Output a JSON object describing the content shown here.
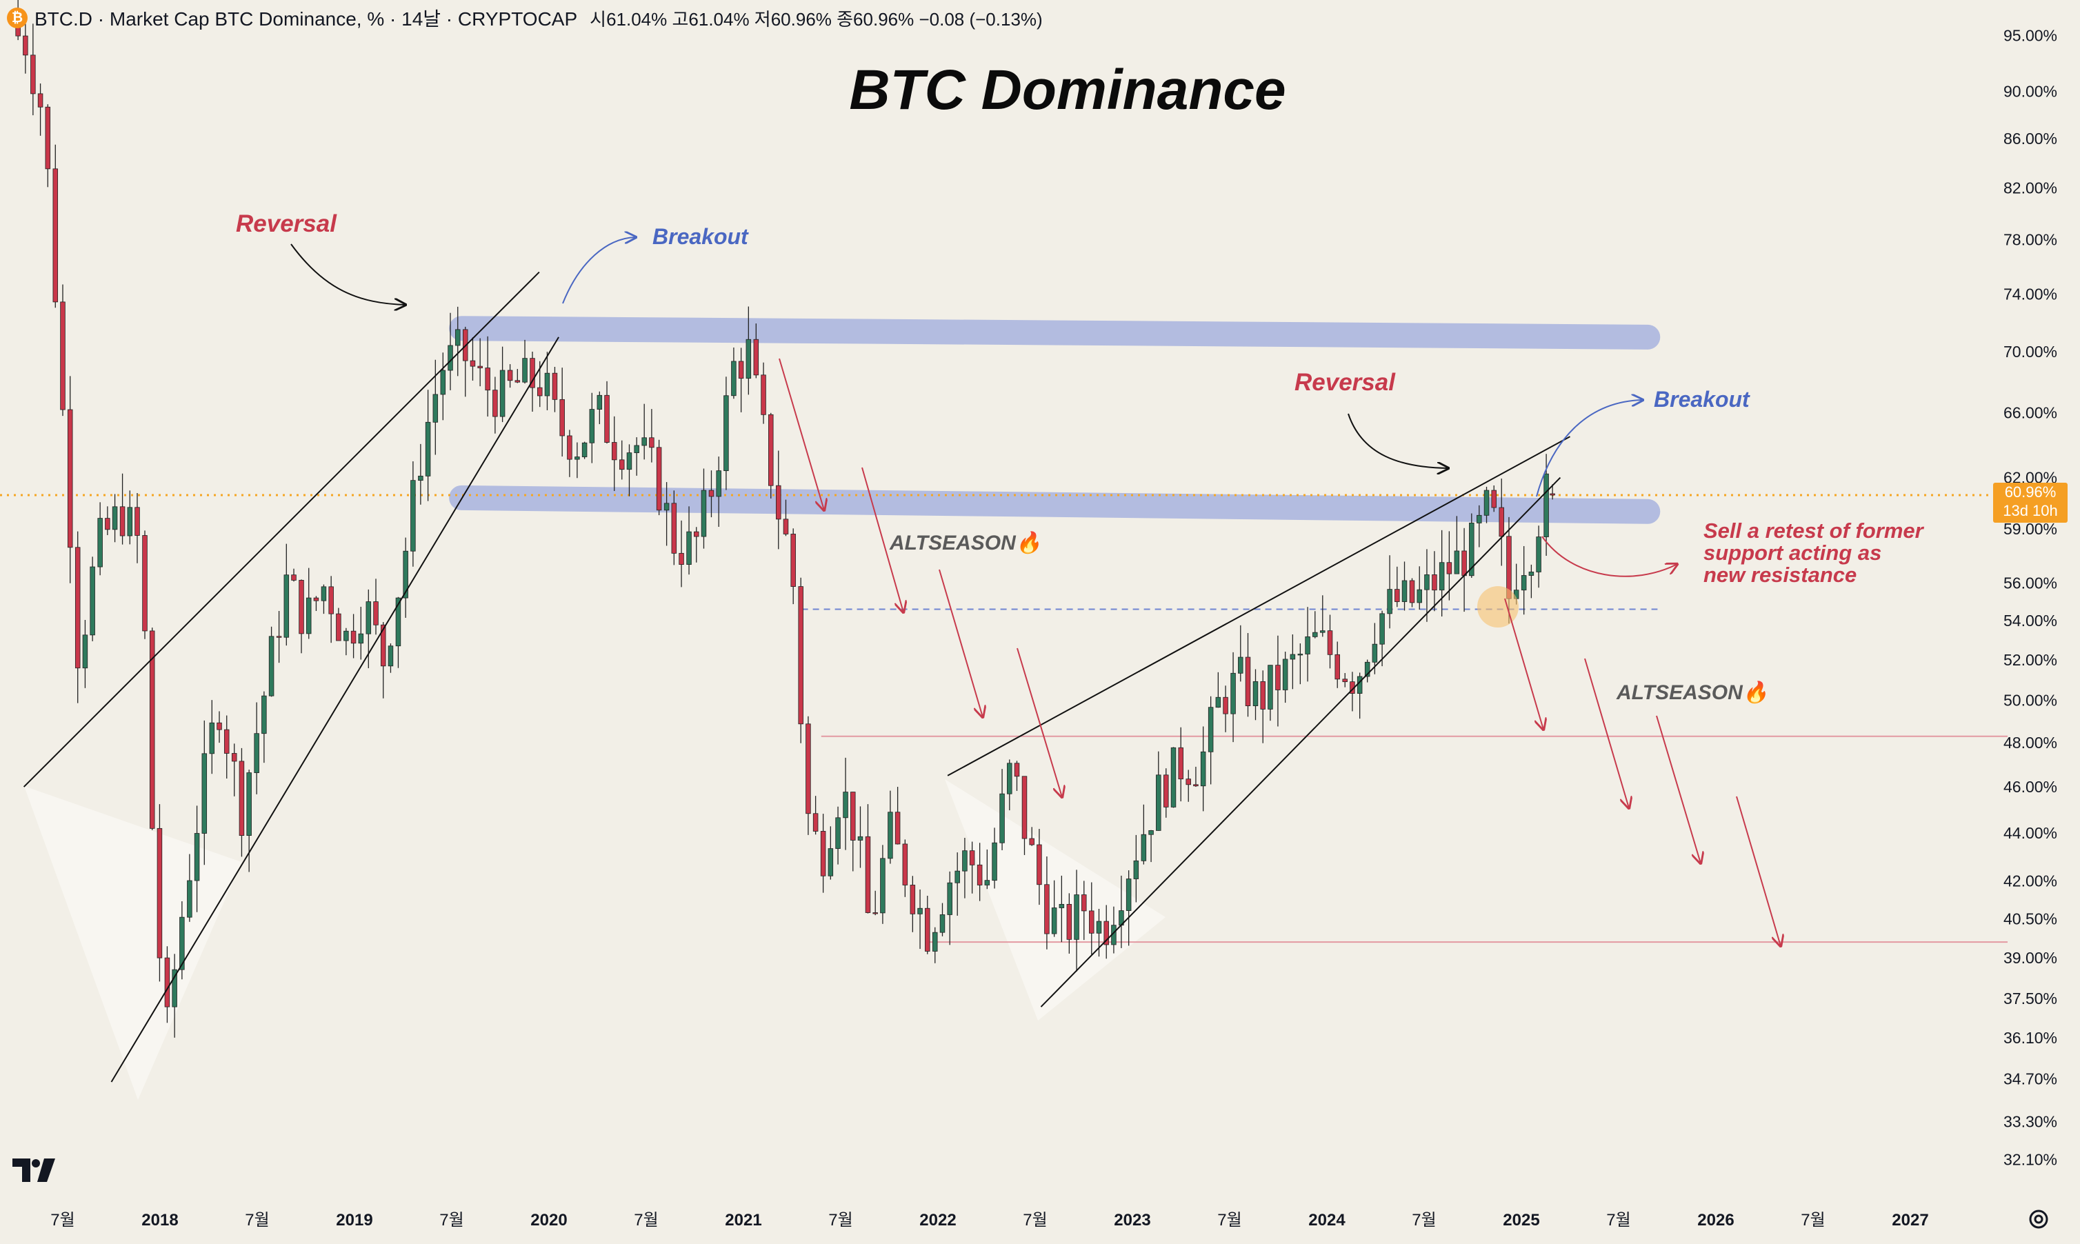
{
  "header": {
    "symbol": "BTC.D · Market Cap BTC Dominance, % · 14날 · CRYPTOCAP",
    "ohlc": "시61.04% 고61.04% 저60.96% 종60.96% −0.08 (−0.13%)"
  },
  "current_price": {
    "value": "60.96%",
    "countdown": "13d 10h"
  },
  "icons": [
    "bitcoin-icon",
    "tradingview-logo-icon",
    "settings-icon"
  ],
  "colors": {
    "background": "#f2efe7",
    "up": "#2f7a5d",
    "down": "#c9374a",
    "zone": "#a9b4df",
    "red_annot": "#c73a4c",
    "blue_annot": "#4a67c2",
    "price_line": "#f5a623"
  },
  "chart_data": {
    "type": "candlestick",
    "title": "BTC Dominance",
    "y_scale": "log",
    "ylim": [
      31.5,
      97
    ],
    "y_ticks": [
      "95.00%",
      "90.00%",
      "86.00%",
      "82.00%",
      "78.00%",
      "74.00%",
      "70.00%",
      "66.00%",
      "62.00%",
      "59.00%",
      "56.00%",
      "54.00%",
      "52.00%",
      "50.00%",
      "48.00%",
      "46.00%",
      "44.00%",
      "42.00%",
      "40.50%",
      "39.00%",
      "37.50%",
      "36.10%",
      "34.70%",
      "33.30%",
      "32.10%"
    ],
    "x_ticks": [
      "7월",
      "2018",
      "7월",
      "2019",
      "7월",
      "2020",
      "7월",
      "2021",
      "7월",
      "2022",
      "7월",
      "2023",
      "7월",
      "2024",
      "7월",
      "2025",
      "7월",
      "2026",
      "7월",
      "2027"
    ],
    "x_range": [
      2017.25,
      2027.5
    ],
    "candles": [],
    "zones": [
      {
        "name": "upper-resistance-zone",
        "from": [
          2019.55,
          71.6
        ],
        "to": [
          2025.65,
          71.0
        ]
      },
      {
        "name": "former-support-zone",
        "from": [
          2019.55,
          60.8
        ],
        "to": [
          2025.65,
          60.0
        ]
      }
    ],
    "horizontal_lines": [
      {
        "name": "current-price-line",
        "value": 60.96,
        "style": "dotted"
      },
      {
        "name": "support-54-line",
        "value": 54.6,
        "from": 2021.3,
        "to": 2025.7,
        "style": "dashed"
      },
      {
        "name": "resistance-48-line",
        "value": 48.3,
        "from": 2021.4,
        "to": 2027.5
      },
      {
        "name": "support-39-line",
        "value": 39.6,
        "from": 2021.95,
        "to": 2027.5
      }
    ],
    "trend_lines": [
      {
        "name": "wedge-2018-upper",
        "from": [
          2017.3,
          46.0
        ],
        "to": [
          2019.95,
          75.6
        ]
      },
      {
        "name": "wedge-2018-lower",
        "from": [
          2017.75,
          34.6
        ],
        "to": [
          2020.05,
          71.0
        ]
      },
      {
        "name": "wedge-2023-upper",
        "from": [
          2022.05,
          46.5
        ],
        "to": [
          2025.25,
          64.5
        ]
      },
      {
        "name": "wedge-2023-lower",
        "from": [
          2022.53,
          37.2
        ],
        "to": [
          2025.2,
          62.0
        ]
      }
    ],
    "annotations": {
      "reversal_1": "Reversal",
      "breakout_1": "Breakout",
      "reversal_2": "Reversal",
      "breakout_2": "Breakout",
      "altseason_1": "ALTSEASON🔥",
      "altseason_2": "ALTSEASON🔥",
      "retest_line1": "Sell a retest of former",
      "retest_line2": "support acting as",
      "retest_line3": "new resistance"
    }
  }
}
